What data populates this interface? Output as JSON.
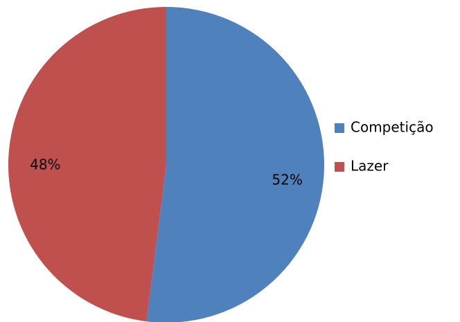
{
  "chart_data": {
    "type": "pie",
    "categories": [
      "Competição",
      "Lazer"
    ],
    "values": [
      52,
      48
    ],
    "value_labels": [
      "52%",
      "48%"
    ],
    "colors": [
      "#4f81bd",
      "#c0504d"
    ],
    "legend": "right"
  }
}
